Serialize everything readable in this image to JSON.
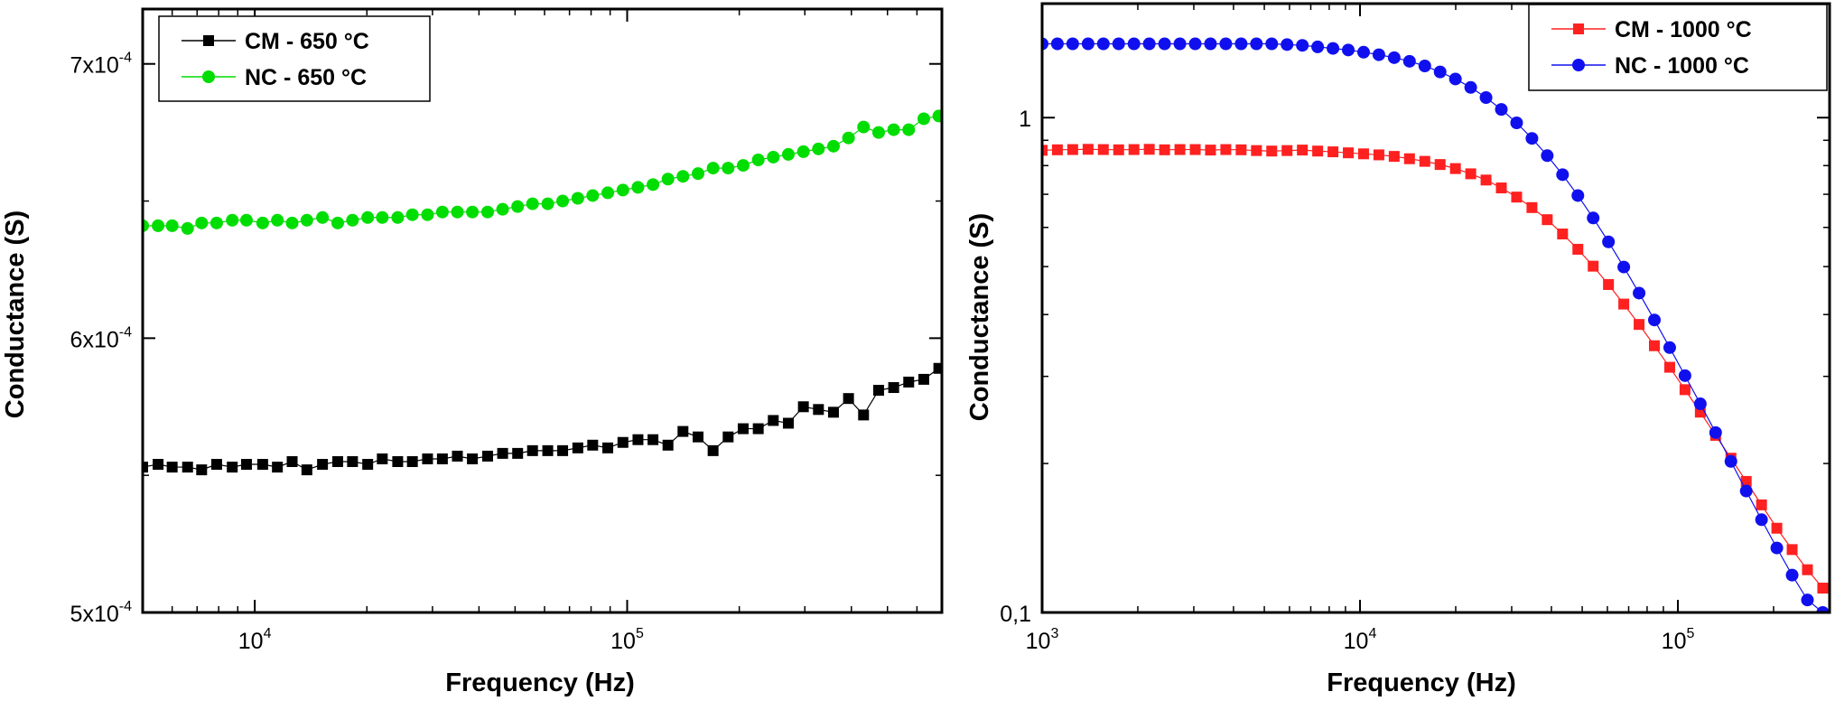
{
  "chart_data": [
    {
      "type": "scatter",
      "xlabel": "Frequency (Hz)",
      "ylabel": "Conductance (S)",
      "xscale": "log",
      "yscale": "linear",
      "xlim": [
        5000,
        700000
      ],
      "ylim": [
        0.0005,
        0.00072
      ],
      "grid": false,
      "legend_position": "top-left",
      "x_ticks": [
        {
          "value": 10000,
          "base": "10",
          "exp": "4"
        },
        {
          "value": 100000,
          "base": "10",
          "exp": "5"
        }
      ],
      "y_ticks": [
        {
          "value": 0.0005,
          "base": "5x10",
          "exp": "-4"
        },
        {
          "value": 0.0006,
          "base": "6x10",
          "exp": "-4"
        },
        {
          "value": 0.0007,
          "base": "7x10",
          "exp": "-4"
        }
      ],
      "series": [
        {
          "name": "CM - 650 °C",
          "color": "#000000",
          "marker": "square",
          "x": [
            5000,
            5500,
            6000,
            6600,
            7200,
            7900,
            8700,
            9500,
            10500,
            11500,
            12600,
            13800,
            15200,
            16700,
            18300,
            20100,
            22000,
            24200,
            26500,
            29100,
            31900,
            35000,
            38400,
            42200,
            46300,
            50800,
            55700,
            61200,
            67100,
            73700,
            80800,
            88700,
            97400,
            106900,
            117300,
            128700,
            141200,
            155000,
            170100,
            186700,
            204900,
            224900,
            246800,
            270900,
            297300,
            326300,
            358100,
            393000,
            431300,
            473400,
            519600,
            570200,
            625800,
            686900
          ],
          "y": [
            0.000553,
            0.000554,
            0.000553,
            0.000553,
            0.000552,
            0.000554,
            0.000553,
            0.000554,
            0.000554,
            0.000553,
            0.000555,
            0.000552,
            0.000554,
            0.000555,
            0.000555,
            0.000554,
            0.000556,
            0.000555,
            0.000555,
            0.000556,
            0.000556,
            0.000557,
            0.000556,
            0.000557,
            0.000558,
            0.000558,
            0.000559,
            0.000559,
            0.000559,
            0.00056,
            0.000561,
            0.00056,
            0.000562,
            0.000563,
            0.000563,
            0.000561,
            0.000566,
            0.000564,
            0.000559,
            0.000564,
            0.000567,
            0.000567,
            0.00057,
            0.000569,
            0.000575,
            0.000574,
            0.000573,
            0.000578,
            0.000572,
            0.000581,
            0.000582,
            0.000584,
            0.000585,
            0.000589
          ]
        },
        {
          "name": "NC - 650 °C",
          "color": "#00dd00",
          "marker": "circle",
          "x": [
            5000,
            5500,
            6000,
            6600,
            7200,
            7900,
            8700,
            9500,
            10500,
            11500,
            12600,
            13800,
            15200,
            16700,
            18300,
            20100,
            22000,
            24200,
            26500,
            29100,
            31900,
            35000,
            38400,
            42200,
            46300,
            50800,
            55700,
            61200,
            67100,
            73700,
            80800,
            88700,
            97400,
            106900,
            117300,
            128700,
            141200,
            155000,
            170100,
            186700,
            204900,
            224900,
            246800,
            270900,
            297300,
            326300,
            358100,
            393000,
            431300,
            473400,
            519600,
            570200,
            625800,
            686900
          ],
          "y": [
            0.000641,
            0.000641,
            0.000641,
            0.00064,
            0.000642,
            0.000642,
            0.000643,
            0.000643,
            0.000642,
            0.000643,
            0.000642,
            0.000643,
            0.000644,
            0.000642,
            0.000643,
            0.000644,
            0.000644,
            0.000644,
            0.000645,
            0.000645,
            0.000646,
            0.000646,
            0.000646,
            0.000646,
            0.000647,
            0.000648,
            0.000649,
            0.000649,
            0.00065,
            0.000651,
            0.000652,
            0.000653,
            0.000654,
            0.000655,
            0.000656,
            0.000658,
            0.000659,
            0.00066,
            0.000662,
            0.000662,
            0.000663,
            0.000665,
            0.000666,
            0.000667,
            0.000668,
            0.000669,
            0.00067,
            0.000673,
            0.000677,
            0.000675,
            0.000676,
            0.000676,
            0.00068,
            0.000681
          ]
        }
      ]
    },
    {
      "type": "scatter",
      "xlabel": "Frequency (Hz)",
      "ylabel": "Conductance (S)",
      "xscale": "log",
      "yscale": "log",
      "xlim": [
        1000,
        300000
      ],
      "ylim": [
        0.1,
        1.7
      ],
      "grid": false,
      "legend_position": "top-right",
      "x_ticks": [
        {
          "value": 1000,
          "base": "10",
          "exp": "3"
        },
        {
          "value": 10000,
          "base": "10",
          "exp": "4"
        },
        {
          "value": 100000,
          "base": "10",
          "exp": "5"
        }
      ],
      "y_ticks": [
        {
          "value": 0.1,
          "base": "0,1",
          "exp": ""
        },
        {
          "value": 1,
          "base": "1",
          "exp": ""
        }
      ],
      "series": [
        {
          "name": "CM - 1000 °C",
          "color": "#ff2020",
          "marker": "square",
          "x": [
            1000,
            1117,
            1248,
            1395,
            1558,
            1741,
            1945,
            2173,
            2428,
            2713,
            3031,
            3386,
            3783,
            4227,
            4723,
            5276,
            5895,
            6586,
            7358,
            8221,
            9185,
            10262,
            11465,
            12809,
            14311,
            15989,
            17864,
            19958,
            22298,
            24912,
            27833,
            31096,
            34742,
            38815,
            43366,
            48450,
            54130,
            60476,
            67567,
            75488,
            84339,
            94227,
            105274,
            117617,
            131406,
            146813,
            164026,
            183257,
            204742,
            228747,
            255566,
            285528
          ],
          "y": [
            0.859,
            0.861,
            0.862,
            0.863,
            0.862,
            0.861,
            0.862,
            0.863,
            0.861,
            0.862,
            0.862,
            0.86,
            0.862,
            0.861,
            0.858,
            0.856,
            0.858,
            0.86,
            0.856,
            0.853,
            0.849,
            0.845,
            0.841,
            0.835,
            0.826,
            0.816,
            0.804,
            0.789,
            0.77,
            0.748,
            0.721,
            0.691,
            0.658,
            0.622,
            0.582,
            0.542,
            0.501,
            0.46,
            0.42,
            0.382,
            0.346,
            0.313,
            0.282,
            0.254,
            0.228,
            0.205,
            0.184,
            0.165,
            0.148,
            0.134,
            0.122,
            0.112
          ]
        },
        {
          "name": "NC - 1000 °C",
          "color": "#1010ee",
          "marker": "circle",
          "x": [
            1000,
            1117,
            1248,
            1395,
            1558,
            1741,
            1945,
            2173,
            2428,
            2713,
            3031,
            3386,
            3783,
            4227,
            4723,
            5276,
            5895,
            6586,
            7358,
            8221,
            9185,
            10262,
            11465,
            12809,
            14311,
            15989,
            17864,
            19958,
            22298,
            24912,
            27833,
            31096,
            34742,
            38815,
            43366,
            48450,
            54130,
            60476,
            67567,
            75488,
            84339,
            94227,
            105274,
            117617,
            131406,
            146813,
            164026,
            183257,
            204742,
            228747,
            255566,
            285528
          ],
          "y": [
            1.41,
            1.41,
            1.41,
            1.41,
            1.41,
            1.41,
            1.41,
            1.41,
            1.41,
            1.41,
            1.41,
            1.41,
            1.41,
            1.41,
            1.41,
            1.41,
            1.405,
            1.4,
            1.39,
            1.38,
            1.37,
            1.356,
            1.34,
            1.322,
            1.3,
            1.272,
            1.237,
            1.197,
            1.151,
            1.098,
            1.039,
            0.976,
            0.908,
            0.838,
            0.767,
            0.696,
            0.627,
            0.561,
            0.499,
            0.442,
            0.39,
            0.343,
            0.301,
            0.264,
            0.231,
            0.202,
            0.176,
            0.154,
            0.135,
            0.119,
            0.106,
            0.1
          ]
        }
      ]
    }
  ]
}
